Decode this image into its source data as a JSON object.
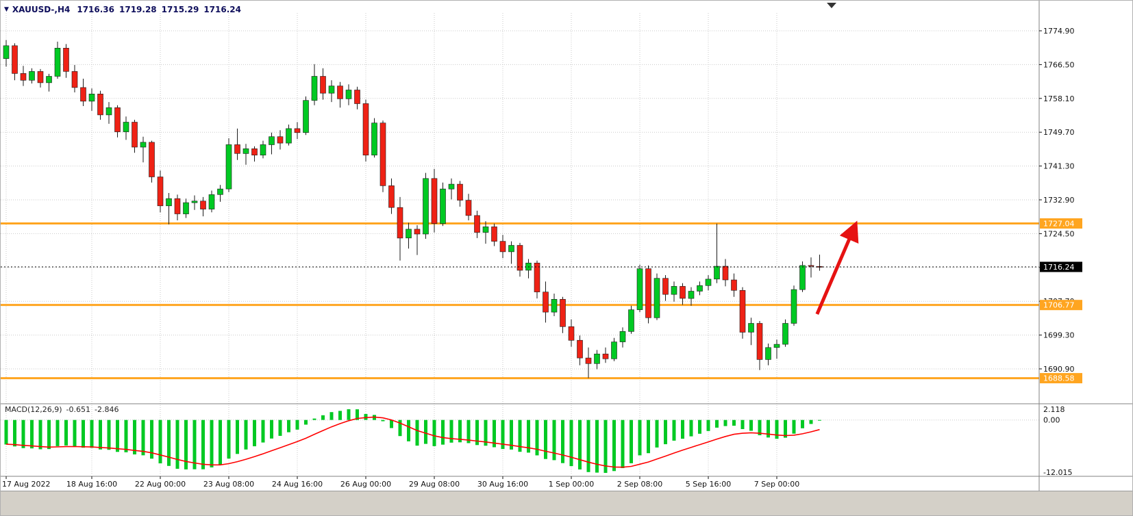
{
  "window": {
    "symbol_title": "XAUUSD-,H4",
    "open": "1716.36",
    "high": "1719.28",
    "low": "1715.29",
    "close": "1716.24",
    "menu_icon": "▼"
  },
  "colors": {
    "up_candle": "#00C923",
    "down_candle": "#EF2215",
    "candle_outline": "#1a1a1a",
    "line_orange": "#FFA520",
    "current_tag_bg": "#000000",
    "tag_text": "#ffffff",
    "grid": "#c9c9c9",
    "macd_histogram": "#00C923",
    "macd_signal": "#FF0000",
    "arrow": "#E61212",
    "axis_text": "#111111",
    "title_text": "#0F0F5C",
    "divider": "#808080",
    "chrome": "#d4d0c8"
  },
  "macd_panel": {
    "label": "MACD(12,26,9)",
    "value": "-0.651",
    "signal": "-2.846",
    "scale_top": "2.118",
    "scale_zero": "0.00",
    "scale_bottom": "-12.015"
  },
  "price_axis": {
    "gridline_labels": [
      "1774.90",
      "1766.50",
      "1758.10",
      "1749.70",
      "1741.30",
      "1732.90",
      "1724.50",
      "1716.10",
      "1707.70",
      "1699.30",
      "1690.90"
    ],
    "tags": [
      {
        "text": "1727.04",
        "price": 1727.04,
        "type": "level"
      },
      {
        "text": "1716.24",
        "price": 1716.24,
        "type": "current"
      },
      {
        "text": "1706.77",
        "price": 1706.77,
        "type": "level"
      },
      {
        "text": "1688.58",
        "price": 1688.58,
        "type": "level"
      }
    ]
  },
  "chart_data": {
    "type": "candlestick",
    "symbol": "XAUUSD",
    "timeframe": "H4",
    "price_gridlines": [
      1774.9,
      1766.5,
      1758.1,
      1749.7,
      1741.3,
      1732.9,
      1724.5,
      1716.1,
      1707.7,
      1699.3,
      1690.9
    ],
    "horizontal_lines": [
      {
        "price": 1727.04,
        "label": "1727.04",
        "color": "#FFA520",
        "width": 3
      },
      {
        "price": 1706.77,
        "label": "1706.77",
        "color": "#FFA520",
        "width": 3
      },
      {
        "price": 1688.58,
        "label": "1688.58",
        "color": "#FFA520",
        "width": 3
      }
    ],
    "current_price": 1716.24,
    "time_labels": [
      {
        "text": "17 Aug 2022",
        "index": 0
      },
      {
        "text": "18 Aug 16:00",
        "index": 10
      },
      {
        "text": "22 Aug 00:00",
        "index": 18
      },
      {
        "text": "23 Aug 08:00",
        "index": 26
      },
      {
        "text": "24 Aug 16:00",
        "index": 34
      },
      {
        "text": "26 Aug 00:00",
        "index": 42
      },
      {
        "text": "29 Aug 08:00",
        "index": 50
      },
      {
        "text": "30 Aug 16:00",
        "index": 58
      },
      {
        "text": "1 Sep 00:00",
        "index": 66
      },
      {
        "text": "2 Sep 08:00",
        "index": 74
      },
      {
        "text": "5 Sep 16:00",
        "index": 82
      },
      {
        "text": "7 Sep 00:00",
        "index": 90
      }
    ],
    "candles": [
      [
        1768.0,
        1772.6,
        1766.0,
        1771.2
      ],
      [
        1771.2,
        1771.8,
        1762.6,
        1764.3
      ],
      [
        1764.3,
        1766.2,
        1761.2,
        1762.6
      ],
      [
        1762.6,
        1765.6,
        1761.8,
        1764.8
      ],
      [
        1764.8,
        1765.4,
        1760.8,
        1762.0
      ],
      [
        1762.0,
        1764.2,
        1759.8,
        1763.6
      ],
      [
        1763.6,
        1772.2,
        1763.0,
        1770.6
      ],
      [
        1770.6,
        1771.6,
        1763.2,
        1764.8
      ],
      [
        1764.8,
        1766.4,
        1759.6,
        1760.8
      ],
      [
        1760.8,
        1763.0,
        1756.2,
        1757.4
      ],
      [
        1757.4,
        1760.6,
        1755.0,
        1759.2
      ],
      [
        1759.2,
        1760.0,
        1752.8,
        1754.0
      ],
      [
        1754.0,
        1757.2,
        1751.8,
        1755.8
      ],
      [
        1755.8,
        1756.4,
        1748.4,
        1749.8
      ],
      [
        1749.8,
        1753.6,
        1747.8,
        1752.2
      ],
      [
        1752.2,
        1752.8,
        1744.6,
        1746.0
      ],
      [
        1746.0,
        1748.6,
        1742.2,
        1747.2
      ],
      [
        1747.2,
        1747.6,
        1737.2,
        1738.6
      ],
      [
        1738.6,
        1740.2,
        1729.8,
        1731.4
      ],
      [
        1731.4,
        1734.6,
        1726.8,
        1733.2
      ],
      [
        1733.2,
        1734.2,
        1727.8,
        1729.4
      ],
      [
        1729.4,
        1733.2,
        1728.4,
        1732.2
      ],
      [
        1732.2,
        1734.0,
        1730.4,
        1732.6
      ],
      [
        1732.6,
        1733.6,
        1728.8,
        1730.6
      ],
      [
        1730.6,
        1735.2,
        1729.8,
        1734.2
      ],
      [
        1734.2,
        1736.6,
        1732.4,
        1735.6
      ],
      [
        1735.6,
        1748.2,
        1734.8,
        1746.6
      ],
      [
        1746.6,
        1750.6,
        1742.8,
        1744.4
      ],
      [
        1744.4,
        1746.8,
        1741.6,
        1745.6
      ],
      [
        1745.6,
        1746.2,
        1742.4,
        1744.0
      ],
      [
        1744.0,
        1747.6,
        1743.2,
        1746.6
      ],
      [
        1746.6,
        1749.6,
        1744.2,
        1748.6
      ],
      [
        1748.6,
        1750.2,
        1745.4,
        1747.0
      ],
      [
        1747.0,
        1751.6,
        1746.4,
        1750.6
      ],
      [
        1750.6,
        1752.2,
        1748.0,
        1749.6
      ],
      [
        1749.6,
        1758.6,
        1749.0,
        1757.6
      ],
      [
        1757.6,
        1766.6,
        1756.4,
        1763.6
      ],
      [
        1763.6,
        1765.6,
        1757.8,
        1759.4
      ],
      [
        1759.4,
        1762.6,
        1757.2,
        1761.2
      ],
      [
        1761.2,
        1762.2,
        1755.8,
        1758.0
      ],
      [
        1758.0,
        1761.6,
        1756.4,
        1760.2
      ],
      [
        1760.2,
        1761.0,
        1755.4,
        1756.8
      ],
      [
        1756.8,
        1757.8,
        1742.4,
        1744.0
      ],
      [
        1744.0,
        1753.2,
        1743.4,
        1752.0
      ],
      [
        1752.0,
        1752.6,
        1734.8,
        1736.4
      ],
      [
        1736.4,
        1738.2,
        1729.4,
        1731.0
      ],
      [
        1731.0,
        1733.6,
        1717.8,
        1723.4
      ],
      [
        1723.4,
        1727.2,
        1720.8,
        1725.6
      ],
      [
        1725.6,
        1726.6,
        1719.2,
        1724.4
      ],
      [
        1724.4,
        1739.6,
        1723.2,
        1738.2
      ],
      [
        1738.2,
        1740.6,
        1724.8,
        1727.0
      ],
      [
        1727.0,
        1737.2,
        1726.4,
        1735.6
      ],
      [
        1735.6,
        1738.2,
        1733.0,
        1736.8
      ],
      [
        1736.8,
        1737.6,
        1731.2,
        1732.8
      ],
      [
        1732.8,
        1734.4,
        1727.8,
        1729.0
      ],
      [
        1729.0,
        1730.2,
        1723.4,
        1724.8
      ],
      [
        1724.8,
        1727.6,
        1722.0,
        1726.2
      ],
      [
        1726.2,
        1727.0,
        1721.4,
        1722.6
      ],
      [
        1722.6,
        1724.2,
        1718.4,
        1720.0
      ],
      [
        1720.0,
        1722.6,
        1717.0,
        1721.6
      ],
      [
        1721.6,
        1722.2,
        1713.8,
        1715.4
      ],
      [
        1715.4,
        1718.2,
        1713.4,
        1717.2
      ],
      [
        1717.2,
        1717.8,
        1708.4,
        1710.0
      ],
      [
        1710.0,
        1712.6,
        1702.4,
        1705.0
      ],
      [
        1705.0,
        1709.6,
        1704.0,
        1708.2
      ],
      [
        1708.2,
        1708.8,
        1699.8,
        1701.4
      ],
      [
        1701.4,
        1703.2,
        1696.4,
        1698.0
      ],
      [
        1698.0,
        1699.2,
        1691.8,
        1693.6
      ],
      [
        1693.6,
        1696.2,
        1688.6,
        1692.2
      ],
      [
        1692.2,
        1695.6,
        1690.8,
        1694.6
      ],
      [
        1694.6,
        1696.2,
        1692.4,
        1693.4
      ],
      [
        1693.4,
        1698.6,
        1692.8,
        1697.6
      ],
      [
        1697.6,
        1701.2,
        1696.2,
        1700.2
      ],
      [
        1700.2,
        1706.6,
        1699.6,
        1705.6
      ],
      [
        1705.6,
        1716.8,
        1705.0,
        1715.8
      ],
      [
        1715.8,
        1716.6,
        1702.2,
        1703.6
      ],
      [
        1703.6,
        1714.6,
        1703.0,
        1713.4
      ],
      [
        1713.4,
        1714.2,
        1707.8,
        1709.4
      ],
      [
        1709.4,
        1712.6,
        1707.6,
        1711.4
      ],
      [
        1711.4,
        1712.2,
        1706.8,
        1708.4
      ],
      [
        1708.4,
        1711.2,
        1706.6,
        1710.2
      ],
      [
        1710.2,
        1712.6,
        1709.2,
        1711.6
      ],
      [
        1711.6,
        1714.2,
        1710.4,
        1713.2
      ],
      [
        1713.2,
        1727.0,
        1712.2,
        1716.4
      ],
      [
        1716.4,
        1718.2,
        1711.4,
        1713.0
      ],
      [
        1713.0,
        1714.6,
        1708.8,
        1710.4
      ],
      [
        1710.4,
        1711.2,
        1698.4,
        1700.0
      ],
      [
        1700.0,
        1703.6,
        1696.8,
        1702.2
      ],
      [
        1702.2,
        1702.8,
        1690.6,
        1693.2
      ],
      [
        1693.2,
        1697.2,
        1691.8,
        1696.2
      ],
      [
        1696.2,
        1698.2,
        1693.4,
        1697.0
      ],
      [
        1697.0,
        1703.2,
        1696.4,
        1702.2
      ],
      [
        1702.2,
        1711.6,
        1701.6,
        1710.6
      ],
      [
        1710.6,
        1717.6,
        1710.0,
        1716.6
      ],
      [
        1716.6,
        1718.6,
        1713.6,
        1716.4
      ],
      [
        1716.36,
        1719.28,
        1715.29,
        1716.24
      ]
    ],
    "macd": {
      "fast": 12,
      "slow": 26,
      "signal": 9,
      "last_value": -0.651,
      "last_signal": -2.846,
      "scale_max": 2.118,
      "scale_min": -12.015,
      "seed": {
        "count": 45,
        "start": 1808.0,
        "step": -0.85
      }
    },
    "annotations": [
      {
        "type": "arrow",
        "from_x_index": 94.7,
        "from_price": 1704.5,
        "to_x_index": 99.1,
        "to_price": 1726.3,
        "color": "#E61212"
      }
    ]
  }
}
